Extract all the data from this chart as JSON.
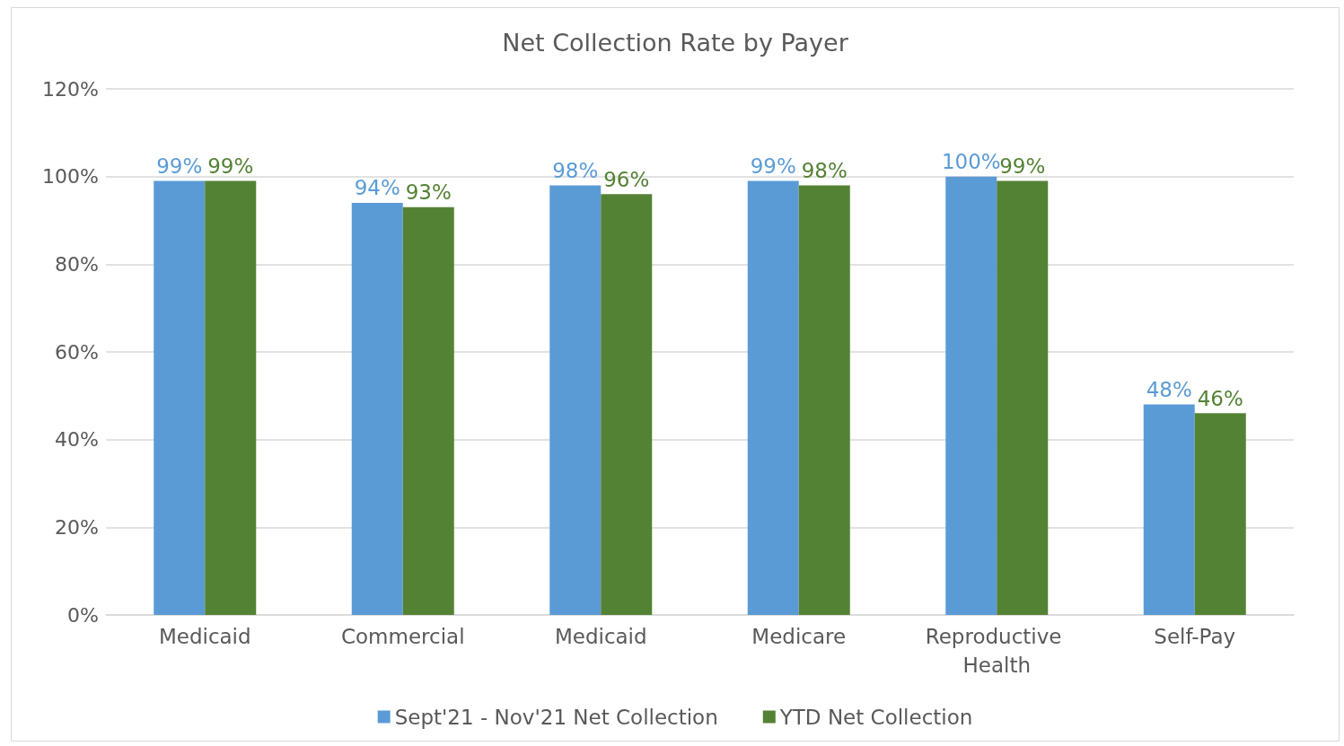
{
  "chart_data": {
    "type": "bar",
    "title": "Net Collection Rate by Payer",
    "categories": [
      "Medicaid",
      "Commercial",
      "Medicaid",
      "Medicare",
      "Reproductive Health",
      "Self-Pay"
    ],
    "series": [
      {
        "name": "Sept'21 - Nov'21 Net Collection",
        "color": "#5b9bd5",
        "values": [
          99,
          94,
          98,
          99,
          100,
          48
        ],
        "value_labels": [
          "99%",
          "94%",
          "98%",
          "99%",
          "100%",
          "48%"
        ]
      },
      {
        "name": "YTD Net Collection",
        "color": "#548235",
        "values": [
          99,
          93,
          96,
          98,
          99,
          46
        ],
        "value_labels": [
          "99%",
          "93%",
          "96%",
          "98%",
          "99%",
          "46%"
        ]
      }
    ],
    "ylim": [
      0,
      120
    ],
    "yticks": [
      {
        "value": 0,
        "label": "0%"
      },
      {
        "value": 20,
        "label": "20%"
      },
      {
        "value": 40,
        "label": "40%"
      },
      {
        "value": 60,
        "label": "60%"
      },
      {
        "value": 80,
        "label": "80%"
      },
      {
        "value": 100,
        "label": "100%"
      },
      {
        "value": 120,
        "label": "120%"
      }
    ],
    "grid": "y",
    "legend": "bottom"
  }
}
